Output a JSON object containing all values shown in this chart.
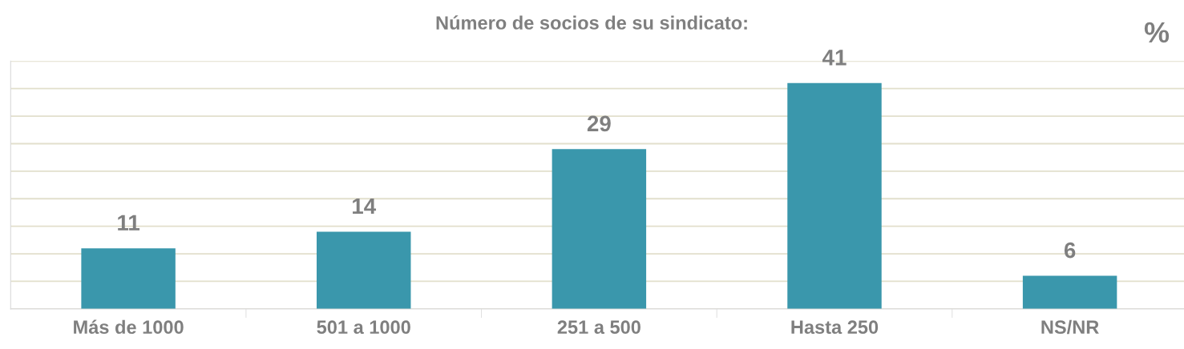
{
  "chart_data": {
    "type": "bar",
    "title": "Número de socios de su sindicato:",
    "categories": [
      "Más de 1000",
      "501 a 1000",
      "251 a 500",
      "Hasta 250",
      "NS/NR"
    ],
    "values": [
      11,
      14,
      29,
      41,
      6
    ],
    "color": "#3a97ac",
    "ylim": [
      0,
      45
    ],
    "yticks": [
      {
        "value": 0,
        "label": null
      },
      {
        "value": 5,
        "label": null
      },
      {
        "value": 10,
        "label": null
      },
      {
        "value": 15,
        "label": null
      },
      {
        "value": 20,
        "label": null
      },
      {
        "value": 25,
        "label": null
      },
      {
        "value": 30,
        "label": null
      },
      {
        "value": 35,
        "label": null
      },
      {
        "value": 40,
        "label": null
      },
      {
        "value": 45,
        "label": null
      }
    ],
    "tick_labels": "x",
    "grid": "y",
    "data_labels": true,
    "annotations": [
      "%"
    ]
  }
}
